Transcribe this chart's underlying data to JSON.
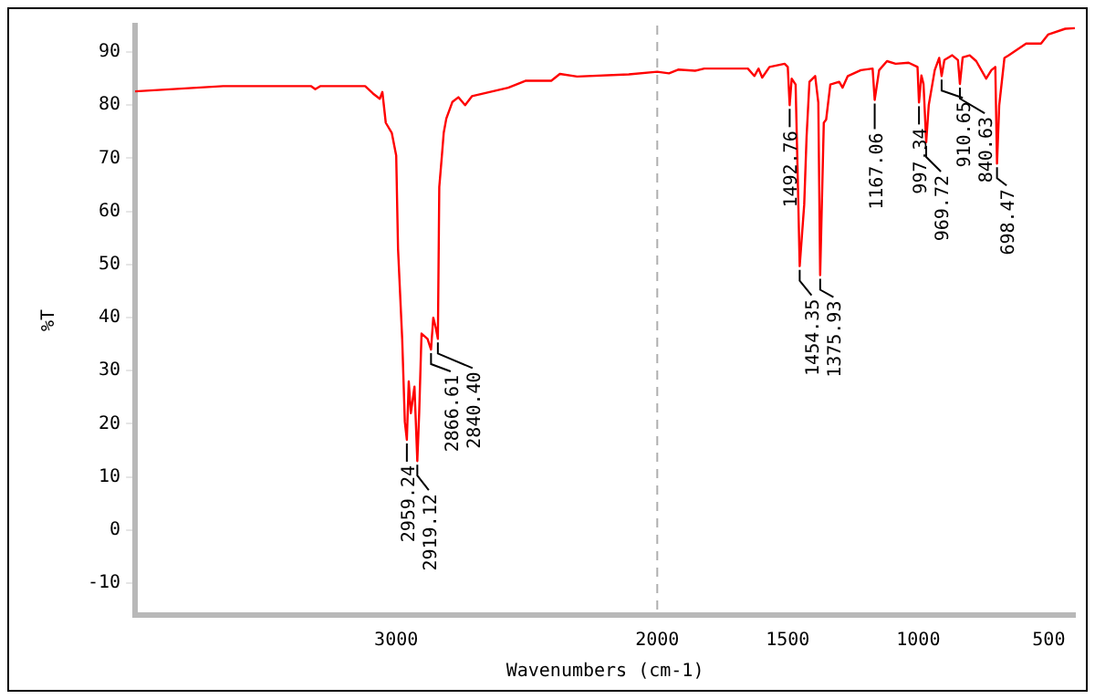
{
  "chart_data": {
    "type": "line",
    "xlabel": "Wavenumbers (cm-1)",
    "ylabel": "%T",
    "xlim": [
      4000,
      400
    ],
    "xticks": [
      3000,
      2000,
      1500,
      1000,
      500
    ],
    "ylim": [
      -16,
      95
    ],
    "yticks": [
      -10,
      0,
      10,
      20,
      30,
      40,
      50,
      60,
      70,
      80,
      90
    ],
    "grid": false,
    "legend": false,
    "marker": "none",
    "line_style": "solid",
    "ref_lines": [
      {
        "axis": "x",
        "value": 2000,
        "color": "#b0b0b0",
        "line_style": "dashed"
      }
    ],
    "series": [
      {
        "color": "#ff0000",
        "x": [
          4000,
          3663,
          3327,
          3310,
          3290,
          3119,
          3089,
          3063,
          3053,
          3040,
          3017,
          3000,
          2993,
          2977,
          2967,
          2959.24,
          2952,
          2944,
          2930,
          2919.12,
          2912,
          2903,
          2880,
          2866.61,
          2858,
          2848,
          2840.4,
          2835,
          2825,
          2818,
          2808,
          2785,
          2762,
          2736,
          2710,
          2571,
          2505,
          2406,
          2373,
          2307,
          2109,
          2000,
          1955,
          1920,
          1855,
          1820,
          1653,
          1628,
          1612,
          1598,
          1570,
          1512,
          1500,
          1492.76,
          1485,
          1470,
          1462,
          1454.35,
          1437,
          1428,
          1417,
          1395,
          1383,
          1375.93,
          1362,
          1353,
          1337,
          1303,
          1290,
          1270,
          1220,
          1175,
          1167.06,
          1150,
          1120,
          1087,
          1037,
          1003,
          997.34,
          988,
          980,
          969.72,
          960,
          937,
          920,
          910.65,
          900,
          870,
          848,
          840.63,
          830,
          803,
          778,
          740,
          720,
          705,
          698.47,
          690,
          670,
          653,
          587,
          530,
          503,
          437,
          400
        ],
        "values": [
          82.6,
          83.6,
          83.6,
          83,
          83.6,
          83.6,
          82.2,
          81.2,
          82.5,
          76.7,
          74.8,
          70.5,
          53,
          35.9,
          20.4,
          17,
          28,
          22,
          27,
          13,
          22,
          37,
          36,
          34,
          40,
          38,
          36,
          64.6,
          70.5,
          74.8,
          77.5,
          80.6,
          81.5,
          80,
          81.7,
          83.3,
          84.6,
          84.6,
          85.9,
          85.4,
          85.8,
          86.3,
          86,
          86.7,
          86.5,
          86.9,
          86.9,
          85.5,
          86.9,
          85.2,
          87.2,
          87.8,
          87.2,
          80,
          85,
          83.9,
          66.8,
          49.7,
          61.3,
          74,
          84.4,
          85.5,
          80.5,
          48,
          76.7,
          77.3,
          83.9,
          84.4,
          83.3,
          85.5,
          86.6,
          86.9,
          81,
          86.6,
          88.3,
          87.8,
          88,
          87.2,
          80.5,
          85.6,
          84,
          73,
          80,
          86.6,
          88.9,
          85.5,
          88.5,
          89.4,
          88.5,
          84,
          89,
          89.4,
          88.3,
          85,
          86.6,
          87.2,
          69,
          80,
          88.9,
          89.4,
          91.6,
          91.6,
          93.3,
          94.4,
          94.5
        ]
      }
    ],
    "annotations": [
      {
        "text": "2959.24",
        "x": 2959.24,
        "y": 17
      },
      {
        "text": "2919.12",
        "x": 2919.12,
        "y": 13
      },
      {
        "text": "2866.61",
        "x": 2866.61,
        "y": 34
      },
      {
        "text": "2840.40",
        "x": 2840.4,
        "y": 36
      },
      {
        "text": "1492.76",
        "x": 1492.76,
        "y": 80
      },
      {
        "text": "1454.35",
        "x": 1454.35,
        "y": 49.7
      },
      {
        "text": "1375.93",
        "x": 1375.93,
        "y": 48
      },
      {
        "text": "1167.06",
        "x": 1167.06,
        "y": 81
      },
      {
        "text": "997.34",
        "x": 997.34,
        "y": 80.5
      },
      {
        "text": "969.72",
        "x": 969.72,
        "y": 73
      },
      {
        "text": "910.65",
        "x": 910.65,
        "y": 85.5
      },
      {
        "text": "840.63",
        "x": 840.63,
        "y": 84
      },
      {
        "text": "698.47",
        "x": 698.47,
        "y": 69
      }
    ]
  }
}
